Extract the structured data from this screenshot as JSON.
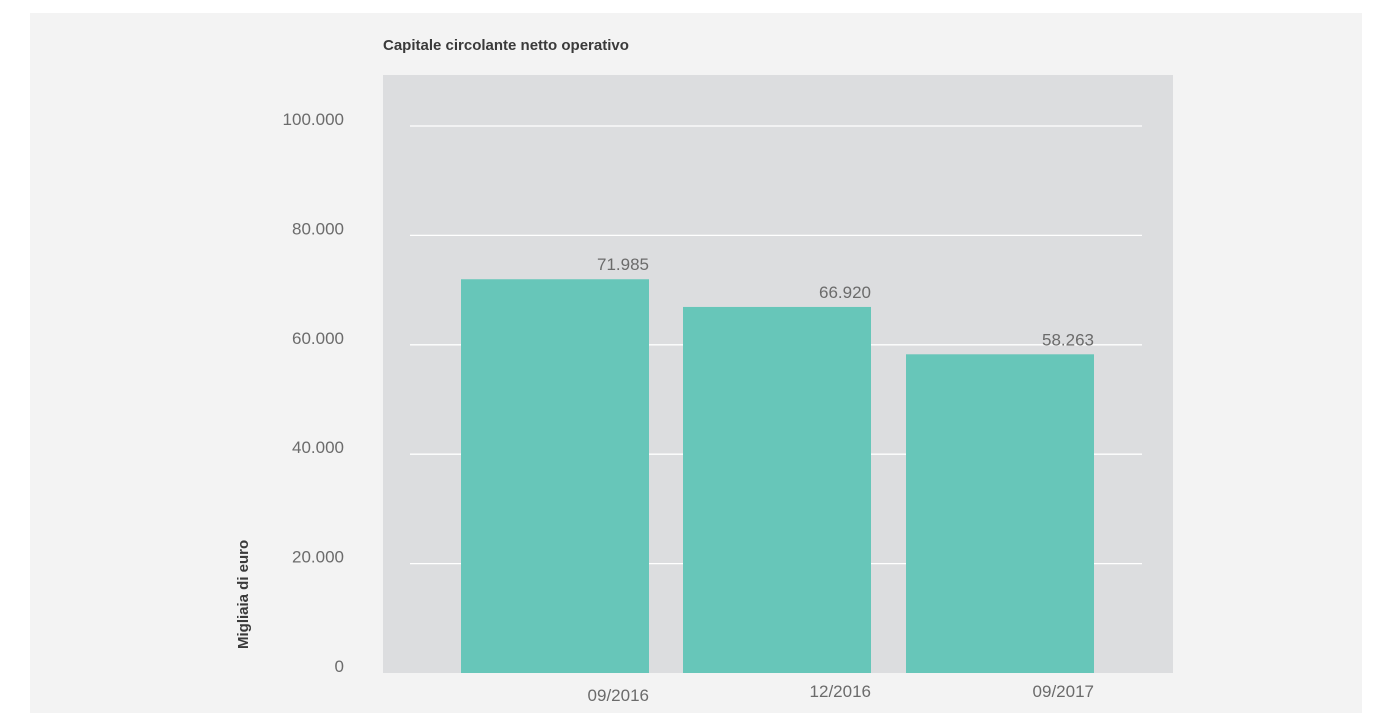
{
  "colors": {
    "panel_background": "#f3f3f3",
    "plot_background": "#dcdddf",
    "gridline": "#ffffff",
    "bar": "#67c6b9",
    "text": "#6b6b6b"
  },
  "chart_data": {
    "type": "bar",
    "title": "Capitale circolante netto operativo",
    "xlabel": "",
    "ylabel": "Migliaia di euro",
    "categories": [
      "09/2016",
      "12/2016",
      "09/2017"
    ],
    "values": [
      71985,
      66920,
      58263
    ],
    "value_labels": [
      "71.985",
      "66.920",
      "58.263"
    ],
    "ylim": [
      0,
      100000
    ],
    "y_ticks": [
      0,
      20000,
      40000,
      60000,
      80000,
      100000
    ],
    "y_tick_labels": [
      "0",
      "20.000",
      "40.000",
      "60.000",
      "80.000",
      "100.000"
    ],
    "grid": true,
    "legend": "none"
  }
}
